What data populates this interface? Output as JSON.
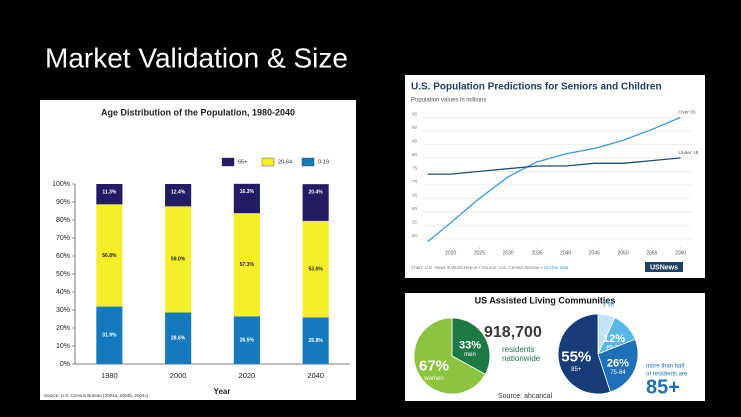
{
  "title": "Market Validation & Size",
  "chart_data": [
    {
      "type": "bar",
      "stacked": true,
      "title": "Age Distribution of the Population, 1980-2040",
      "xlabel": "Year",
      "source": "Source: U.S. Census Bureau (2004a, 2004b, 2004c).",
      "categories": [
        "1980",
        "2000",
        "2020",
        "2040"
      ],
      "series": [
        {
          "name": "65+",
          "color": "#211c63",
          "label_color": "#ffffff",
          "values": [
            11.3,
            12.4,
            16.3,
            20.4
          ],
          "value_labels": [
            "11.3%",
            "12.4%",
            "16.3%",
            "20.4%"
          ]
        },
        {
          "name": "20-64",
          "color": "#f7ee2a",
          "label_color": "#222222",
          "values": [
            56.8,
            59.0,
            57.3,
            53.6
          ],
          "value_labels": [
            "56.8%",
            "59.0%",
            "57.3%",
            "53.6%"
          ]
        },
        {
          "name": "0-19",
          "color": "#1479bd",
          "label_color": "#ffffff",
          "values": [
            31.9,
            28.6,
            26.5,
            25.9
          ],
          "value_labels": [
            "31.9%",
            "28.6%",
            "26.5%",
            "25.9%"
          ]
        }
      ],
      "ylim": [
        0,
        100
      ],
      "yticks": [
        {
          "value": 0,
          "label": "0%"
        },
        {
          "value": 10,
          "label": "10%"
        },
        {
          "value": 20,
          "label": "20%"
        },
        {
          "value": 30,
          "label": "30%"
        },
        {
          "value": 40,
          "label": "40%"
        },
        {
          "value": 50,
          "label": "50%"
        },
        {
          "value": 60,
          "label": "60%"
        },
        {
          "value": 70,
          "label": "70%"
        },
        {
          "value": 80,
          "label": "80%"
        },
        {
          "value": 90,
          "label": "90%"
        },
        {
          "value": 100,
          "label": "100%"
        }
      ],
      "grid": false
    },
    {
      "type": "line",
      "title": "U.S. Population Predictions for Seniors and Children",
      "subtitle": "Population values in millions",
      "footer": "Chart: U.S. News & World Report • Source: U.S. Census Bureau • ",
      "footer_link": "Get the data",
      "logo": "USNews",
      "x": [
        2016,
        2020,
        2025,
        2030,
        2035,
        2040,
        2045,
        2050,
        2055,
        2060
      ],
      "series": [
        {
          "name": "Over 65",
          "color": "#3d9ad8",
          "values": [
            49,
            56,
            65,
            73,
            78.5,
            81.5,
            83.5,
            86.5,
            90.5,
            95
          ]
        },
        {
          "name": "Under 18",
          "color": "#1f4e79",
          "values": [
            74,
            74,
            75,
            76,
            77,
            77,
            78,
            78,
            79,
            80
          ]
        }
      ],
      "xlim": [
        2015,
        2062
      ],
      "xticks": [
        2020,
        2025,
        2030,
        2035,
        2040,
        2045,
        2050,
        2055,
        2060
      ],
      "ylim": [
        47,
        97
      ],
      "yticks": [
        50,
        55,
        60,
        65,
        70,
        75,
        80,
        85,
        90,
        95
      ],
      "grid": true
    },
    {
      "type": "pie",
      "categories": [
        "men",
        "women"
      ],
      "values": [
        33,
        67
      ],
      "value_labels": [
        "33%",
        "67%"
      ],
      "colors": [
        "#1e7a44",
        "#8cc43f"
      ]
    },
    {
      "type": "pie",
      "categories": [
        null,
        "65-74",
        "75-84",
        "85+"
      ],
      "values": [
        7,
        12,
        26,
        55
      ],
      "value_labels": [
        "7%",
        "12%",
        "26%",
        "55%"
      ],
      "colors": [
        "#bfe3f7",
        "#5bb6e8",
        "#1f6fb8",
        "#163d7a"
      ]
    }
  ],
  "infographic": {
    "title": "US Assisted Living Communities",
    "count": "918,700",
    "count_caption": [
      "residents",
      "nationwide"
    ],
    "source": "Source: ahcancal",
    "note": [
      "more than half",
      "of residents are"
    ],
    "highlight": "85+"
  }
}
